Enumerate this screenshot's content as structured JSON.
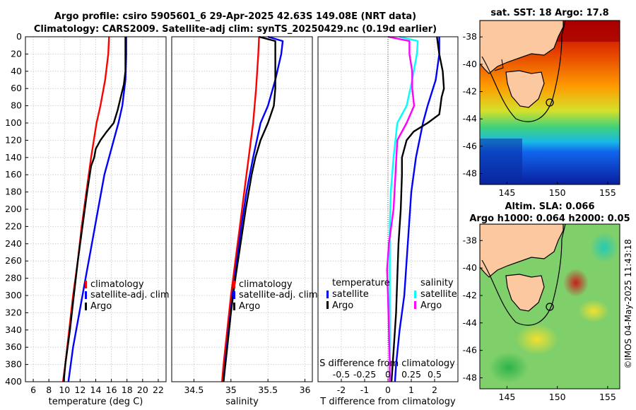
{
  "header": {
    "title_line1": "Argo profile: csiro 5905601_6 29-Apr-2025 42.63S 149.08E (NRT data)",
    "title_line2": "Climatology: CARS2009. Satellite-adj clim: synTS_20250429.nc (0.19d earlier)"
  },
  "watermark": "©IMOS 04-May-2025 11:43:18",
  "colors": {
    "climatology": "#ff0000",
    "satellite": "#0000ff",
    "argo": "#000000",
    "sal_satellite": "#00ffff",
    "sal_argo": "#ff00ff"
  },
  "chart_data": [
    {
      "id": "temp",
      "type": "line",
      "xlabel": "temperature (deg C)",
      "ylabel": "",
      "xlim": [
        5,
        23
      ],
      "ylim": [
        400,
        0
      ],
      "x_ticks": [
        6,
        8,
        10,
        12,
        14,
        16,
        18,
        20,
        22
      ],
      "x_tick_labels": [
        "6",
        "8",
        "10",
        "12",
        "14",
        "16",
        "18",
        "20",
        "22"
      ],
      "y_ticks": [
        0,
        20,
        40,
        60,
        80,
        100,
        120,
        140,
        160,
        180,
        200,
        220,
        240,
        260,
        280,
        300,
        320,
        340,
        360,
        380,
        400
      ],
      "y_tick_labels": [
        "0",
        "20",
        "40",
        "60",
        "80",
        "100",
        "120",
        "140",
        "160",
        "180",
        "200",
        "220",
        "240",
        "260",
        "280",
        "300",
        "320",
        "340",
        "360",
        "380",
        "400"
      ],
      "grid": true,
      "legend": [
        "climatology",
        "satellite-adj. clim",
        "Argo"
      ],
      "series": [
        {
          "name": "climatology",
          "color": "#ff0000",
          "depth": [
            0,
            20,
            50,
            80,
            100,
            140,
            180,
            220,
            260,
            300,
            340,
            380,
            400
          ],
          "values": [
            15.7,
            15.6,
            15.2,
            14.6,
            14.1,
            13.4,
            12.8,
            12.2,
            11.7,
            11.1,
            10.6,
            10.1,
            9.8
          ]
        },
        {
          "name": "satellite-adj. clim",
          "color": "#0000ff",
          "depth": [
            0,
            20,
            50,
            80,
            100,
            120,
            140,
            160,
            200,
            240,
            280,
            320,
            360,
            400
          ],
          "values": [
            17.9,
            17.9,
            17.8,
            17.4,
            16.9,
            16.3,
            15.7,
            15.1,
            14.3,
            13.5,
            12.7,
            11.9,
            11.1,
            10.5
          ]
        },
        {
          "name": "Argo",
          "color": "#000000",
          "depth": [
            0,
            20,
            40,
            55,
            70,
            85,
            100,
            110,
            120,
            130,
            140,
            150,
            180,
            220,
            260,
            300,
            340,
            380,
            400
          ],
          "values": [
            17.8,
            17.8,
            17.8,
            17.6,
            17.2,
            16.8,
            16.3,
            15.4,
            14.6,
            14.0,
            13.8,
            13.4,
            12.9,
            12.3,
            11.7,
            11.2,
            10.7,
            10.1,
            9.9
          ]
        }
      ]
    },
    {
      "id": "salinity",
      "type": "line",
      "xlabel": "salinity",
      "xlim": [
        34.2,
        36.1
      ],
      "ylim": [
        400,
        0
      ],
      "x_ticks": [
        34.5,
        35,
        35.5,
        36
      ],
      "x_tick_labels": [
        "34.5",
        "35",
        "35.5",
        "36"
      ],
      "grid": true,
      "legend": [
        "climatology",
        "satellite-adj. clim",
        "Argo"
      ],
      "series": [
        {
          "name": "climatology",
          "color": "#ff0000",
          "depth": [
            0,
            20,
            60,
            100,
            140,
            180,
            220,
            260,
            300,
            340,
            380,
            400
          ],
          "values": [
            35.38,
            35.37,
            35.34,
            35.3,
            35.24,
            35.18,
            35.12,
            35.06,
            35.0,
            34.95,
            34.9,
            34.88
          ]
        },
        {
          "name": "satellite-adj. clim",
          "color": "#0000ff",
          "depth": [
            0,
            5,
            20,
            50,
            80,
            100,
            140,
            180,
            220,
            260,
            300,
            340,
            380,
            400
          ],
          "values": [
            35.5,
            35.7,
            35.68,
            35.6,
            35.5,
            35.4,
            35.3,
            35.21,
            35.14,
            35.08,
            35.02,
            34.97,
            34.92,
            34.9
          ]
        },
        {
          "name": "Argo",
          "color": "#000000",
          "depth": [
            0,
            5,
            20,
            40,
            60,
            80,
            100,
            120,
            140,
            160,
            200,
            240,
            280,
            320,
            360,
            400
          ],
          "values": [
            35.38,
            35.6,
            35.6,
            35.6,
            35.6,
            35.58,
            35.5,
            35.4,
            35.33,
            35.28,
            35.2,
            35.13,
            35.06,
            35.0,
            34.95,
            34.9
          ]
        }
      ]
    },
    {
      "id": "difference",
      "type": "line",
      "xlabel": "T difference from climatology",
      "xlim": [
        -3,
        3
      ],
      "ylim": [
        400,
        0
      ],
      "x_ticks": [
        -2,
        -1,
        0,
        1,
        2
      ],
      "x_tick_labels": [
        "-2",
        "-1",
        "0",
        "1",
        "2"
      ],
      "top_xlabel": "S difference from climatology",
      "top_x_ticks": [
        -0.5,
        -0.25,
        0,
        0.25,
        0.5
      ],
      "top_x_tick_labels": [
        "-0.5",
        "-0.25",
        "0",
        "0.25",
        "0.5"
      ],
      "grid": true,
      "legend_temperature": {
        "title": "temperature",
        "entries": [
          "satellite",
          "Argo"
        ]
      },
      "legend_salinity": {
        "title": "salinity",
        "entries": [
          "satellite",
          "Argo"
        ]
      },
      "series": [
        {
          "name": "T satellite",
          "color": "#0000ff",
          "depth": [
            0,
            20,
            50,
            80,
            100,
            140,
            180,
            220,
            260,
            300,
            340,
            380,
            400
          ],
          "values": [
            2.2,
            2.2,
            2.05,
            1.7,
            1.5,
            1.2,
            1.0,
            0.9,
            0.8,
            0.7,
            0.5,
            0.35,
            0.3
          ]
        },
        {
          "name": "T Argo",
          "color": "#000000",
          "depth": [
            0,
            20,
            40,
            60,
            70,
            80,
            90,
            100,
            110,
            120,
            140,
            160,
            200,
            240,
            280,
            320,
            360,
            400
          ],
          "values": [
            2.1,
            2.2,
            2.35,
            2.4,
            2.3,
            2.25,
            2.2,
            1.7,
            1.1,
            0.8,
            0.6,
            0.6,
            0.55,
            0.45,
            0.4,
            0.35,
            0.25,
            0.15
          ]
        },
        {
          "name": "S satellite",
          "color": "#00ffff",
          "depth": [
            0,
            5,
            20,
            50,
            80,
            100,
            140,
            180,
            220,
            260,
            300,
            340,
            380,
            400
          ],
          "values": [
            0.12,
            0.32,
            0.31,
            0.26,
            0.2,
            0.1,
            0.06,
            0.03,
            0.02,
            0.02,
            0.02,
            0.02,
            0.02,
            0.02
          ]
        },
        {
          "name": "S Argo",
          "color": "#ff00ff",
          "depth": [
            0,
            5,
            20,
            40,
            60,
            80,
            100,
            120,
            140,
            160,
            200,
            240,
            270,
            300,
            340,
            380,
            400
          ],
          "values": [
            0.0,
            0.23,
            0.23,
            0.26,
            0.26,
            0.28,
            0.2,
            0.1,
            0.09,
            0.08,
            0.06,
            0.01,
            -0.01,
            0.0,
            0.01,
            0.02,
            0.02
          ]
        }
      ]
    },
    {
      "id": "sst_map",
      "type": "heatmap",
      "title": "sat. SST: 18 Argo: 17.8",
      "xlim": [
        142.3,
        156.2
      ],
      "ylim": [
        -48.8,
        -36.8
      ],
      "x_ticks": [
        145,
        150,
        155
      ],
      "x_tick_labels": [
        "145",
        "150",
        "155"
      ],
      "y_ticks": [
        -38,
        -40,
        -42,
        -44,
        -46,
        -48
      ],
      "y_tick_labels": [
        "-38",
        "-40",
        "-42",
        "-44",
        "-46",
        "-48"
      ],
      "marker": {
        "lon": 149.08,
        "lat": -42.63
      }
    },
    {
      "id": "sla_map",
      "type": "heatmap",
      "title_line1": "Altim. SLA: 0.066",
      "title_line2": "Argo h1000: 0.064 h2000: 0.05",
      "xlim": [
        142.3,
        156.2
      ],
      "ylim": [
        -48.8,
        -36.8
      ],
      "x_ticks": [
        145,
        150,
        155
      ],
      "x_tick_labels": [
        "145",
        "150",
        "155"
      ],
      "y_ticks": [
        -38,
        -40,
        -42,
        -44,
        -46,
        -48
      ],
      "y_tick_labels": [
        "-38",
        "-40",
        "-42",
        "-44",
        "-46",
        "-48"
      ],
      "marker": {
        "lon": 149.08,
        "lat": -42.63
      }
    }
  ]
}
